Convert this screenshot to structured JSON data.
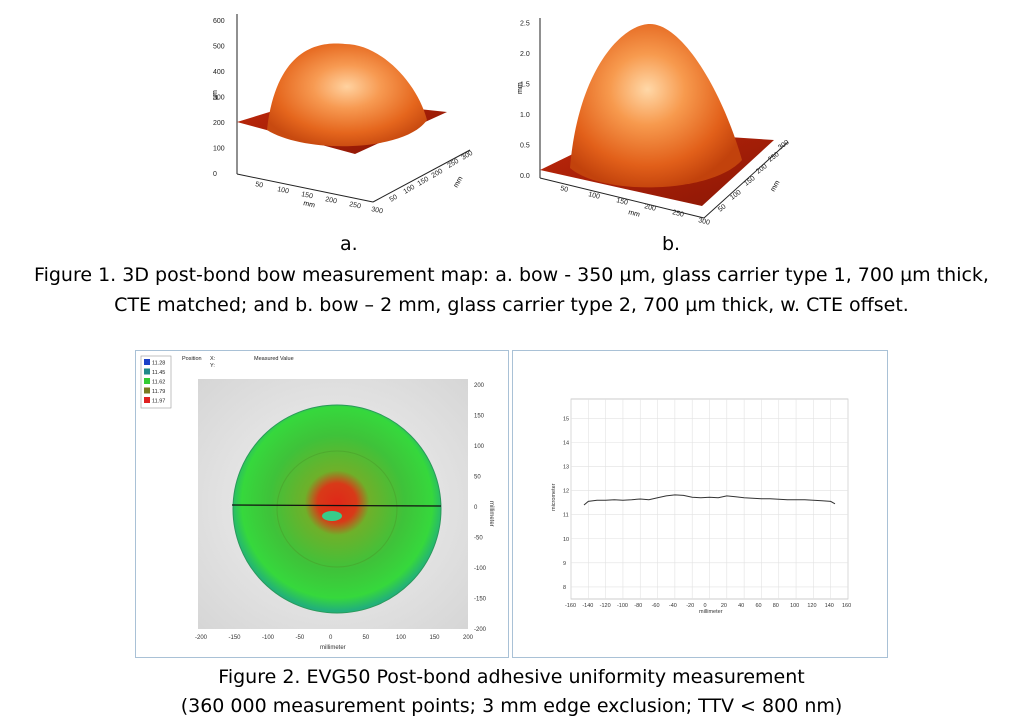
{
  "figure1": {
    "plot_a": {
      "label": "a.",
      "z_axis_unit": "µm",
      "z_ticks": [
        "0",
        "100",
        "200",
        "300",
        "400",
        "500",
        "600"
      ],
      "x_axis_unit": "mm",
      "x_ticks": [
        "50",
        "100",
        "150",
        "200",
        "250",
        "300"
      ],
      "y_axis_unit": "mm",
      "y_ticks": [
        "50",
        "100",
        "150",
        "200",
        "250",
        "300"
      ]
    },
    "plot_b": {
      "label": "b.",
      "z_axis_unit": "mm",
      "z_ticks": [
        "0.0",
        "0.5",
        "1.0",
        "1.5",
        "2.0",
        "2.5"
      ],
      "x_axis_unit": "mm",
      "x_ticks": [
        "50",
        "100",
        "150",
        "200",
        "250",
        "300"
      ],
      "y_axis_unit": "mm",
      "y_ticks": [
        "50",
        "100",
        "150",
        "200",
        "250",
        "300"
      ]
    },
    "caption_line1": "Figure 1. 3D post-bond bow measurement map: a. bow - 350 µm, glass carrier type 1, 700 µm thick,",
    "caption_line2": "CTE matched; and b. bow – 2 mm, glass carrier type 2, 700 µm thick, w. CTE offset."
  },
  "figure2": {
    "map": {
      "legend": [
        {
          "value": "11.28",
          "color": "#1a40c8"
        },
        {
          "value": "11.45",
          "color": "#1e8a8a"
        },
        {
          "value": "11.62",
          "color": "#33cc33"
        },
        {
          "value": "11.79",
          "color": "#7a7a20"
        },
        {
          "value": "11.97",
          "color": "#e02020"
        }
      ],
      "position_label": "Position",
      "x_label": "X:",
      "y_label": "Y:",
      "measured_label": "Measured Value",
      "x_ticks": [
        "-200",
        "-150",
        "-100",
        "-50",
        "0",
        "50",
        "100",
        "150",
        "200"
      ],
      "y_ticks": [
        "200",
        "150",
        "100",
        "50",
        "0",
        "-50",
        "-100",
        "-150",
        "-200"
      ],
      "x_axis_label": "millimeter",
      "y_axis_label": "millimeter"
    },
    "profile": {
      "chart_data": {
        "type": "line",
        "xlabel": "millimeter",
        "ylabel": "micrometer",
        "xlim": [
          -160,
          160
        ],
        "ylim": [
          7.5,
          15.8
        ],
        "x_ticks": [
          "-160",
          "-140",
          "-120",
          "-100",
          "-80",
          "-60",
          "-40",
          "-20",
          "0",
          "20",
          "40",
          "60",
          "80",
          "100",
          "120",
          "140",
          "160"
        ],
        "y_ticks": [
          "8",
          "9",
          "10",
          "11",
          "12",
          "13",
          "14",
          "15"
        ],
        "x": [
          -145,
          -140,
          -130,
          -120,
          -110,
          -100,
          -90,
          -80,
          -70,
          -60,
          -50,
          -40,
          -30,
          -20,
          -10,
          0,
          10,
          20,
          30,
          40,
          50,
          60,
          70,
          80,
          90,
          100,
          110,
          120,
          130,
          140,
          145
        ],
        "y": [
          11.4,
          11.55,
          11.6,
          11.6,
          11.62,
          11.6,
          11.62,
          11.65,
          11.62,
          11.7,
          11.78,
          11.82,
          11.8,
          11.72,
          11.7,
          11.72,
          11.7,
          11.78,
          11.74,
          11.7,
          11.68,
          11.66,
          11.66,
          11.64,
          11.62,
          11.62,
          11.62,
          11.6,
          11.58,
          11.55,
          11.45
        ]
      }
    },
    "caption_line1": "Figure 2. EVG50 Post-bond adhesive uniformity measurement",
    "caption_line2": "(360 000 measurement points; 3 mm edge exclusion; TTV < 800 nm)"
  }
}
